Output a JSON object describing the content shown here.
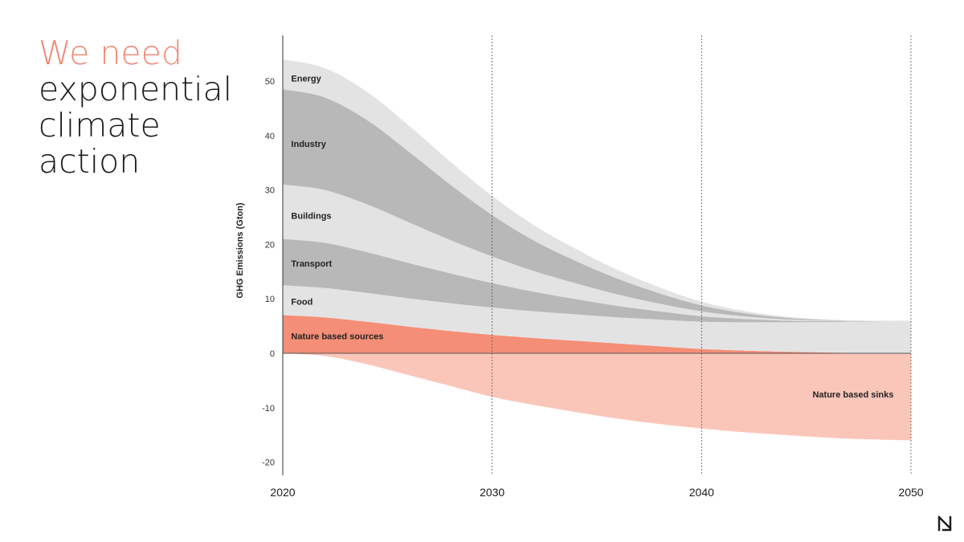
{
  "headline": {
    "line1": "We need",
    "line2": "exponential",
    "line3": "climate",
    "line4": "action"
  },
  "colors": {
    "accent": "#f28a76",
    "band_light": "#e3e3e3",
    "band_dark": "#b8b8b8",
    "sources": "#f58e77",
    "sinks": "#fbc6ba"
  },
  "logo_icon": "n-brand-logo-icon",
  "chart_data": {
    "type": "area",
    "stacked": true,
    "title": "",
    "xlabel": "",
    "ylabel": "GHG Emissions (Gton)",
    "xlim": [
      2020,
      2050
    ],
    "ylim": [
      -22,
      56
    ],
    "x_ticks": [
      2020,
      2030,
      2040,
      2050
    ],
    "y_ticks": [
      -20,
      -10,
      0,
      10,
      20,
      30,
      40,
      50
    ],
    "grid": "vertical dotted lines at 2030, 2040, 2050",
    "x": [
      2020,
      2022,
      2024,
      2026,
      2028,
      2030,
      2032,
      2034,
      2036,
      2038,
      2040,
      2042,
      2044,
      2046,
      2048,
      2050
    ],
    "series": [
      {
        "name": "Nature based sinks",
        "values": [
          0,
          -0.5,
          -2,
          -4,
          -6,
          -8,
          -9.5,
          -10.8,
          -12,
          -13,
          -13.8,
          -14.5,
          -15,
          -15.5,
          -15.8,
          -16
        ],
        "color": "#fbc6ba"
      },
      {
        "name": "Nature based sources",
        "values": [
          7,
          6.6,
          5.8,
          4.9,
          4.1,
          3.4,
          2.8,
          2.3,
          1.8,
          1.3,
          0.8,
          0.5,
          0.3,
          0.15,
          0.05,
          0
        ],
        "color": "#f58e77"
      },
      {
        "name": "Food",
        "values": [
          5.5,
          5.4,
          5.3,
          5.2,
          5.1,
          5,
          4.9,
          4.85,
          4.8,
          4.9,
          5,
          5.2,
          5.4,
          5.6,
          5.8,
          6
        ],
        "color": "#e3e3e3"
      },
      {
        "name": "Transport",
        "values": [
          8.5,
          8.3,
          7.5,
          6.5,
          5.5,
          4.5,
          3.6,
          2.8,
          2.1,
          1.5,
          1,
          0.6,
          0.3,
          0.15,
          0.05,
          0
        ],
        "color": "#b8b8b8"
      },
      {
        "name": "Buildings",
        "values": [
          10,
          9.7,
          8.8,
          7.5,
          6.1,
          4.9,
          3.8,
          2.9,
          2.1,
          1.4,
          0.9,
          0.5,
          0.25,
          0.1,
          0.03,
          0
        ],
        "color": "#e3e3e3"
      },
      {
        "name": "Industry",
        "values": [
          17.5,
          17,
          15.5,
          13,
          10.2,
          7.6,
          5.6,
          4.1,
          2.9,
          1.9,
          1.1,
          0.6,
          0.3,
          0.12,
          0.03,
          0
        ],
        "color": "#b8b8b8"
      },
      {
        "name": "Energy",
        "values": [
          5.5,
          5.4,
          5.2,
          4.8,
          4.2,
          3.5,
          2.8,
          2.2,
          1.6,
          1.1,
          0.7,
          0.4,
          0.2,
          0.08,
          0.02,
          0
        ],
        "color": "#e3e3e3"
      }
    ],
    "band_labels": [
      {
        "text": "Energy",
        "x": 2020.4,
        "y": 50.5
      },
      {
        "text": "Industry",
        "x": 2020.4,
        "y": 38.5
      },
      {
        "text": "Buildings",
        "x": 2020.4,
        "y": 25.3
      },
      {
        "text": "Transport",
        "x": 2020.4,
        "y": 16.5
      },
      {
        "text": "Food",
        "x": 2020.4,
        "y": 9.5
      },
      {
        "text": "Nature based sources",
        "x": 2020.4,
        "y": 3.2
      },
      {
        "text": "Nature based sinks",
        "x": 2045.3,
        "y": -7.5
      }
    ]
  }
}
